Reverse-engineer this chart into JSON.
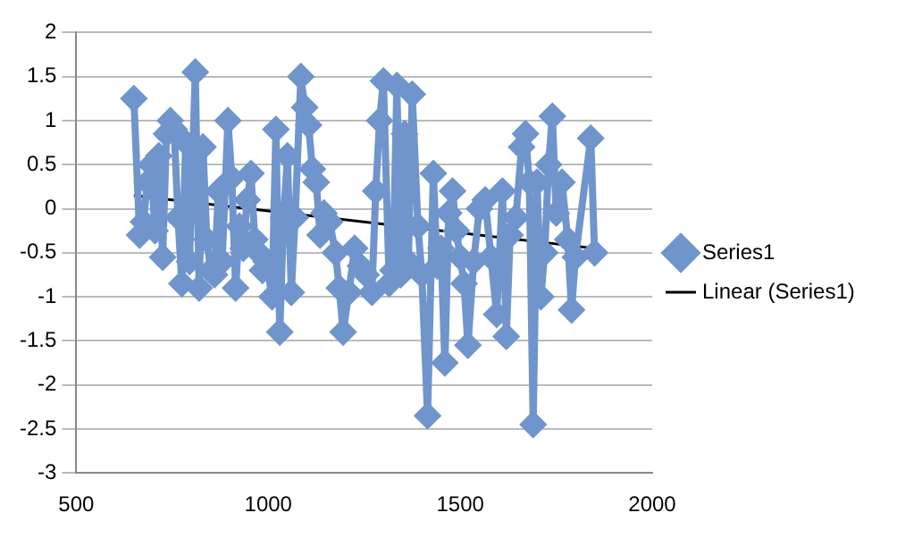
{
  "chart_data": {
    "type": "line",
    "xlim": [
      500,
      2000
    ],
    "xticks": [
      500,
      1000,
      1500,
      2000
    ],
    "ylim": [
      -3,
      2
    ],
    "yticks": [
      -3,
      -2.5,
      -2,
      -1.5,
      -1,
      -0.5,
      0,
      0.5,
      1,
      1.5,
      2
    ],
    "grid": "y",
    "legend": "right",
    "marker": "diamond",
    "series": [
      {
        "name": "Series1",
        "color": "#7095cc",
        "x": [
          650,
          665,
          675,
          685,
          695,
          705,
          715,
          725,
          735,
          745,
          755,
          765,
          775,
          785,
          795,
          810,
          820,
          830,
          840,
          850,
          860,
          870,
          880,
          895,
          905,
          915,
          925,
          935,
          945,
          955,
          965,
          975,
          985,
          995,
          1010,
          1020,
          1030,
          1040,
          1050,
          1060,
          1070,
          1085,
          1095,
          1105,
          1115,
          1125,
          1135,
          1145,
          1160,
          1175,
          1185,
          1195,
          1210,
          1225,
          1240,
          1255,
          1270,
          1280,
          1290,
          1300,
          1315,
          1325,
          1335,
          1345,
          1355,
          1365,
          1375,
          1390,
          1400,
          1415,
          1430,
          1440,
          1450,
          1460,
          1470,
          1480,
          1490,
          1500,
          1510,
          1520,
          1535,
          1550,
          1565,
          1580,
          1595,
          1610,
          1620,
          1630,
          1645,
          1660,
          1670,
          1680,
          1690,
          1700,
          1710,
          1720,
          1730,
          1740,
          1750,
          1765,
          1780,
          1790,
          1800,
          1840,
          1850
        ],
        "values": [
          1.25,
          -0.3,
          -0.15,
          0.3,
          0.5,
          -0.25,
          0.6,
          -0.55,
          0.85,
          1.0,
          0.9,
          -0.1,
          -0.85,
          0.75,
          -0.6,
          1.55,
          -0.9,
          0.7,
          -0.35,
          -0.7,
          -0.75,
          0.2,
          -0.6,
          1.0,
          0.35,
          -0.9,
          -0.2,
          -0.45,
          0.1,
          0.4,
          -0.35,
          -0.5,
          -0.7,
          -0.6,
          -1.0,
          0.9,
          -1.4,
          -0.1,
          0.6,
          -0.95,
          -0.1,
          1.5,
          1.15,
          0.95,
          0.45,
          0.3,
          -0.3,
          -0.05,
          -0.15,
          -0.5,
          -0.9,
          -1.4,
          -0.95,
          -0.45,
          -0.65,
          -0.75,
          -0.95,
          0.2,
          1.0,
          1.45,
          -0.85,
          -0.7,
          1.4,
          -0.75,
          0.85,
          -0.6,
          1.3,
          -0.2,
          -0.75,
          -2.35,
          0.4,
          -0.65,
          -0.45,
          -1.75,
          -0.05,
          0.2,
          -0.25,
          -0.55,
          -0.85,
          -1.55,
          -0.6,
          0.0,
          0.1,
          -0.55,
          -1.2,
          0.2,
          -1.45,
          -0.3,
          -0.1,
          0.7,
          0.85,
          0.3,
          -2.45,
          0.3,
          -1.0,
          -0.5,
          0.5,
          1.05,
          -0.05,
          0.3,
          -0.35,
          -1.15,
          -0.55,
          0.8,
          -0.5
        ]
      },
      {
        "name": "Linear (Series1)",
        "color": "#000000",
        "type": "line",
        "marker": "none",
        "x": [
          650,
          1850
        ],
        "values": [
          0.15,
          -0.45
        ]
      }
    ]
  }
}
